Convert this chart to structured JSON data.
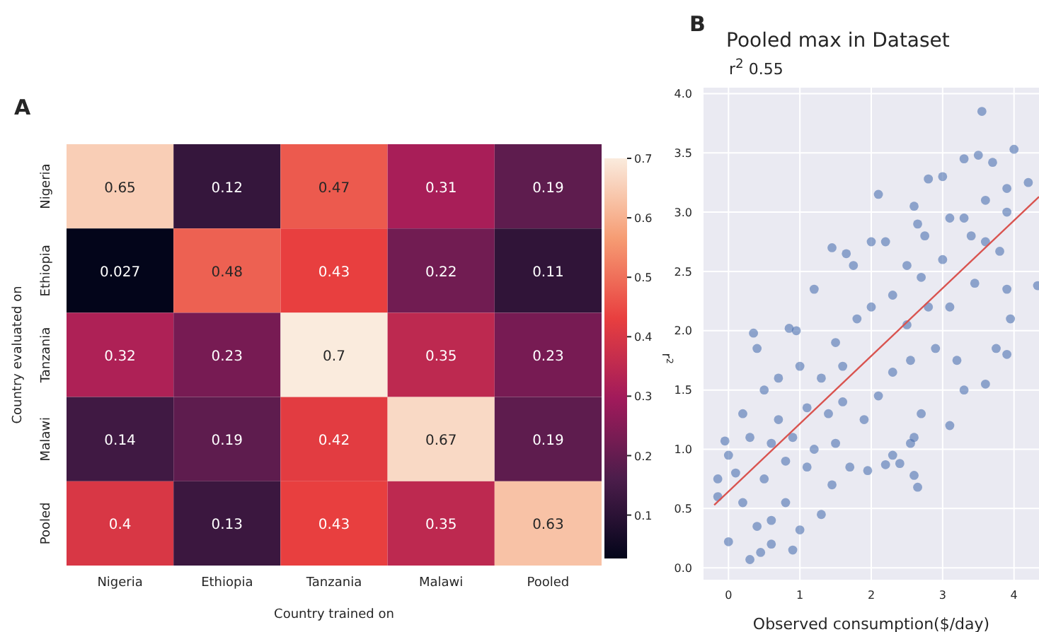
{
  "chart_data": [
    {
      "type": "heatmap",
      "annotations": [
        "A"
      ],
      "xlabel": "Country trained on",
      "ylabel": "Country evaluated on",
      "clabel": "r$^{2}$",
      "categories": [
        "Nigeria",
        "Ethiopia",
        "Tanzania",
        "Malawi",
        "Pooled"
      ],
      "y_categories": [
        "Nigeria",
        "Ethiopia",
        "Tanzania",
        "Malawi",
        "Pooled"
      ],
      "cells": [
        [
          0.65,
          0.12,
          0.47,
          0.31,
          0.19
        ],
        [
          0.027,
          0.48,
          0.43,
          0.22,
          0.11
        ],
        [
          0.32,
          0.23,
          0.7,
          0.35,
          0.23
        ],
        [
          0.14,
          0.19,
          0.42,
          0.67,
          0.19
        ],
        [
          0.4,
          0.13,
          0.43,
          0.35,
          0.63
        ]
      ],
      "clim": [
        0.027,
        0.7
      ],
      "cticks": [
        0.1,
        0.2,
        0.3,
        0.4,
        0.5,
        0.6,
        0.7
      ],
      "data_labels": true
    },
    {
      "type": "scatter",
      "annotations": [
        "B"
      ],
      "title": "Pooled max in Dataset",
      "subtitle": "r$^{2}$ 0.55",
      "xlabel": "Observed consumption($/day)",
      "xlim": [
        -0.35,
        4.35
      ],
      "xticks": [
        0,
        1,
        2,
        3,
        4
      ],
      "ylim": [
        -0.1,
        4.05
      ],
      "yticks": [
        {
          "value": 0,
          "label": "0.0"
        },
        {
          "value": 0.5,
          "label": "0.5"
        },
        {
          "value": 1,
          "label": "1.0"
        },
        {
          "value": 1.5,
          "label": "1.5"
        },
        {
          "value": 2,
          "label": "2.0"
        },
        {
          "value": 2.5,
          "label": "2.5"
        },
        {
          "value": 3,
          "label": "3.0"
        },
        {
          "value": 3.5,
          "label": "3.5"
        },
        {
          "value": 4,
          "label": "4.0"
        }
      ],
      "grid": true,
      "series": [
        {
          "type": "scatter",
          "color": "#4c72b0",
          "marker": "circle",
          "x": [
            3.55,
            4.0,
            3.7,
            3.3,
            3.5,
            4.2,
            3.9,
            3.0,
            2.8,
            2.1,
            3.6,
            3.9,
            4.33,
            3.8,
            3.9,
            3.95,
            3.9,
            3.75,
            3.6,
            3.3,
            3.1,
            2.7,
            2.6,
            2.55,
            2.6,
            2.65,
            2.3,
            2.2,
            2.4,
            1.95,
            1.7,
            1.45,
            1.3,
            1.0,
            0.9,
            0.6,
            0.3,
            0.45,
            0.0,
            -0.15,
            -0.15,
            -0.05,
            0.0,
            0.4,
            0.35,
            0.85,
            0.95,
            1.2,
            1.45,
            1.65,
            1.75,
            2.0,
            2.2,
            2.5,
            2.6,
            2.65,
            2.75,
            3.1,
            3.4,
            3.45,
            3.1,
            2.9,
            2.55,
            2.3,
            2.1,
            1.9,
            1.6,
            1.5,
            1.1,
            0.8,
            0.6,
            0.4,
            0.2,
            0.1,
            0.3,
            0.2,
            0.5,
            0.7,
            0.9,
            1.1,
            1.3,
            1.0,
            0.7,
            1.5,
            1.8,
            2.0,
            2.3,
            2.5,
            2.7,
            3.0,
            3.3,
            3.6,
            1.2,
            0.5,
            0.8,
            1.6,
            2.8,
            3.2,
            0.6,
            1.4
          ],
          "values": [
            3.85,
            3.53,
            3.42,
            3.45,
            3.48,
            3.25,
            3.2,
            3.3,
            3.28,
            3.15,
            3.1,
            3.0,
            2.38,
            2.67,
            2.35,
            2.1,
            1.8,
            1.85,
            1.55,
            1.5,
            1.2,
            1.3,
            1.1,
            1.05,
            0.78,
            0.68,
            0.95,
            0.87,
            0.88,
            0.82,
            0.85,
            0.7,
            0.45,
            0.32,
            0.15,
            0.2,
            0.07,
            0.13,
            0.22,
            0.6,
            0.75,
            1.07,
            0.95,
            1.85,
            1.98,
            2.02,
            2.0,
            2.35,
            2.7,
            2.65,
            2.55,
            2.75,
            2.75,
            2.55,
            3.05,
            2.9,
            2.8,
            2.95,
            2.8,
            2.4,
            2.2,
            1.85,
            1.75,
            1.65,
            1.45,
            1.25,
            1.4,
            1.05,
            0.85,
            0.55,
            0.4,
            0.35,
            0.55,
            0.8,
            1.1,
            1.3,
            1.5,
            1.25,
            1.1,
            1.35,
            1.6,
            1.7,
            1.6,
            1.9,
            2.1,
            2.2,
            2.3,
            2.05,
            2.45,
            2.6,
            2.95,
            2.75,
            1.0,
            0.75,
            0.9,
            1.7,
            2.2,
            1.75,
            1.05,
            1.3
          ]
        },
        {
          "type": "line",
          "color": "#d9534f",
          "marker": "none",
          "x": [
            -0.2,
            4.35
          ],
          "values": [
            0.53,
            3.13
          ]
        }
      ]
    }
  ]
}
